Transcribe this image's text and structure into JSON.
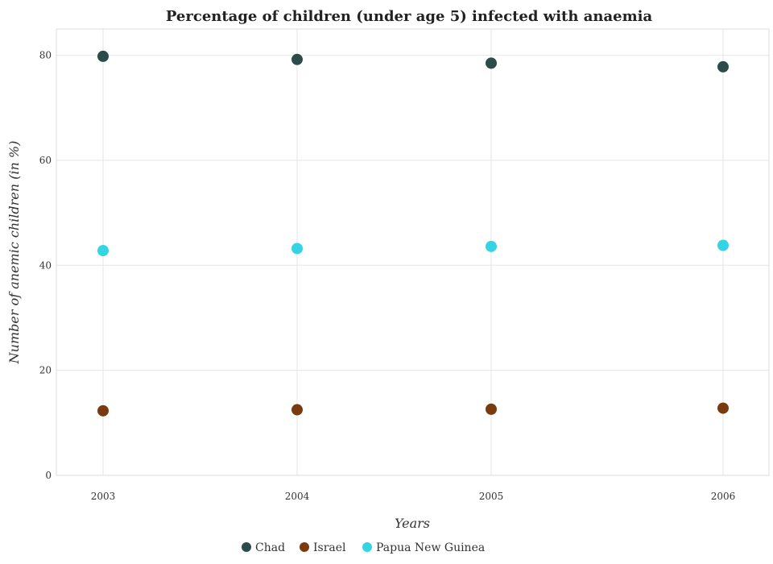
{
  "chart_data": {
    "type": "scatter",
    "title": "Percentage of children (under age 5) infected with anaemia",
    "xlabel": "Years",
    "ylabel": "Number of anemic children (in %)",
    "categories": [
      "2003",
      "2004",
      "2005",
      "2006"
    ],
    "ylim": [
      0,
      85
    ],
    "yticks": [
      0,
      20,
      40,
      60,
      80
    ],
    "grid": true,
    "legend_position": "bottom-center",
    "series": [
      {
        "name": "Chad",
        "color": "#2c4c4a",
        "values": [
          79.8,
          79.2,
          78.5,
          77.8
        ]
      },
      {
        "name": "Israel",
        "color": "#7a3a0f",
        "values": [
          12.3,
          12.5,
          12.6,
          12.8
        ]
      },
      {
        "name": "Papua New Guinea",
        "color": "#35d4e3",
        "values": [
          42.8,
          43.2,
          43.6,
          43.8
        ]
      }
    ]
  }
}
